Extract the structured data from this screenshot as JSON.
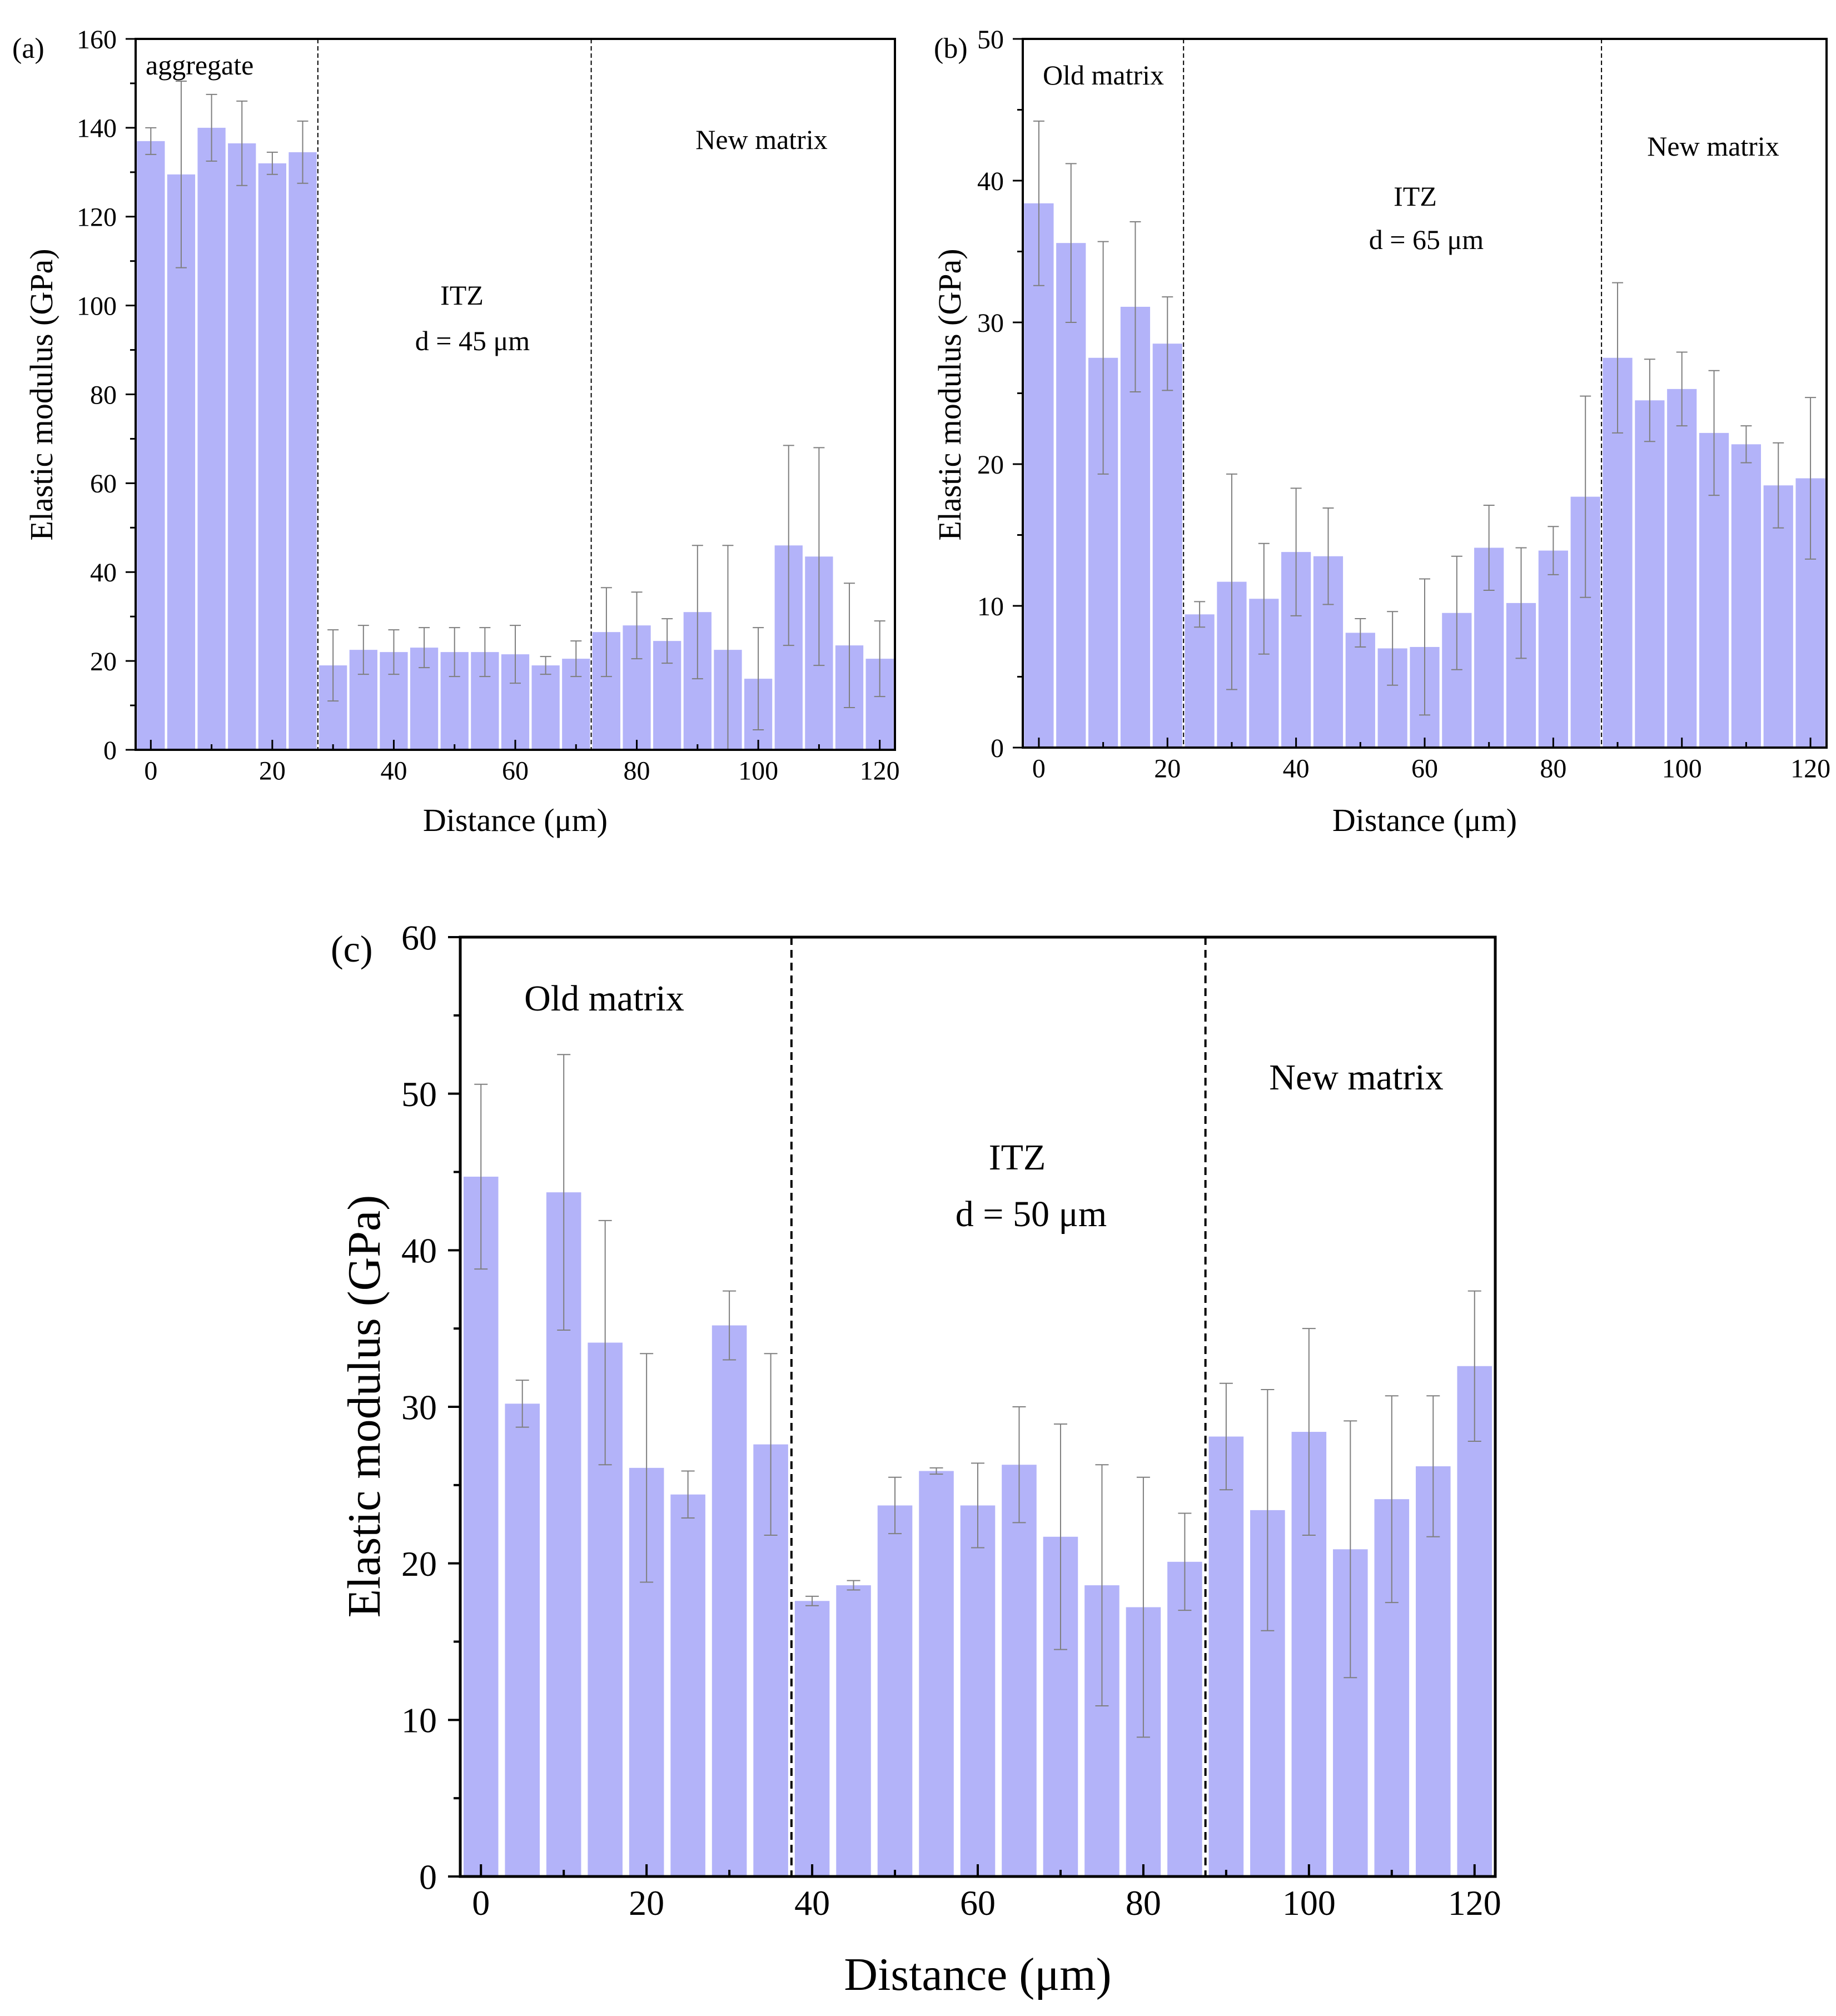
{
  "colors": {
    "bar": "#b3b3f9",
    "error_bar": "#7f7f7f",
    "axis": "#000000",
    "divider": "#000000"
  },
  "chart_data": [
    {
      "panel_label": "(a)",
      "type": "bar",
      "title": "",
      "xlabel": "Distance (μm)",
      "ylabel": "Elastic modulus (GPa)",
      "xlim": [
        -2.5,
        122.5
      ],
      "ylim": [
        0,
        160
      ],
      "xticks": [
        "0",
        "20",
        "40",
        "60",
        "80",
        "100",
        "120"
      ],
      "yticks": [
        "0",
        "20",
        "40",
        "60",
        "80",
        "100",
        "120",
        "140",
        "160"
      ],
      "x": [
        0,
        5,
        10,
        15,
        20,
        25,
        30,
        35,
        40,
        45,
        50,
        55,
        60,
        65,
        70,
        75,
        80,
        85,
        90,
        95,
        100,
        105,
        110,
        115,
        120
      ],
      "values": [
        137,
        129.5,
        140,
        136.5,
        132,
        134.5,
        19,
        22.5,
        22,
        23,
        22,
        22,
        21.5,
        19,
        20.5,
        26.5,
        28,
        24.5,
        31,
        22.5,
        16,
        46,
        43.5,
        23.5,
        20.5
      ],
      "errors": [
        3,
        21,
        7.5,
        9.5,
        2.5,
        7,
        8,
        5.5,
        5,
        4.5,
        5.5,
        5.5,
        6.5,
        2,
        4,
        10,
        7.5,
        5,
        15,
        23.5,
        11.5,
        22.5,
        24.5,
        14,
        8.5
      ],
      "dividers": [
        27.5,
        72.5
      ],
      "regions": [
        {
          "label": "aggregate",
          "lines": [
            "aggregate"
          ]
        },
        {
          "label": "ITZ d = 45 μm",
          "lines": [
            "ITZ",
            "d = 45 μm"
          ]
        },
        {
          "label": "New matrix",
          "lines": [
            "New matrix"
          ]
        }
      ]
    },
    {
      "panel_label": "(b)",
      "type": "bar",
      "title": "",
      "xlabel": "Distance (μm)",
      "ylabel": "Elastic modulus (GPa)",
      "xlim": [
        -2.5,
        122.5
      ],
      "ylim": [
        0,
        50
      ],
      "xticks": [
        "0",
        "20",
        "40",
        "60",
        "80",
        "100",
        "120"
      ],
      "yticks": [
        "0",
        "10",
        "20",
        "30",
        "40",
        "50"
      ],
      "x": [
        0,
        5,
        10,
        15,
        20,
        25,
        30,
        35,
        40,
        45,
        50,
        55,
        60,
        65,
        70,
        75,
        80,
        85,
        90,
        95,
        100,
        105,
        110,
        115,
        120
      ],
      "values": [
        38.4,
        35.6,
        27.5,
        31.1,
        28.5,
        9.4,
        11.7,
        10.5,
        13.8,
        13.5,
        8.1,
        7,
        7.1,
        9.5,
        14.1,
        10.2,
        13.9,
        17.7,
        27.5,
        24.5,
        25.3,
        22.2,
        21.4,
        18.5,
        19
      ],
      "errors": [
        5.8,
        5.6,
        8.2,
        6,
        3.3,
        0.9,
        7.6,
        3.9,
        4.5,
        3.4,
        1,
        2.6,
        4.8,
        4,
        3,
        3.9,
        1.7,
        7.1,
        5.3,
        2.9,
        2.6,
        4.4,
        1.3,
        3,
        5.7
      ],
      "dividers": [
        22.5,
        87.5
      ],
      "regions": [
        {
          "label": "Old matrix",
          "lines": [
            "Old matrix"
          ]
        },
        {
          "label": "ITZ d = 65 μm",
          "lines": [
            "ITZ",
            "d = 65 μm"
          ]
        },
        {
          "label": "New matrix",
          "lines": [
            "New matrix"
          ]
        }
      ]
    },
    {
      "panel_label": "(c)",
      "type": "bar",
      "title": "",
      "xlabel": "Distance (μm)",
      "ylabel": "Elastic modulus (GPa)",
      "xlim": [
        -2.5,
        122.5
      ],
      "ylim": [
        0,
        60
      ],
      "xticks": [
        "0",
        "20",
        "40",
        "60",
        "80",
        "100",
        "120"
      ],
      "yticks": [
        "0",
        "10",
        "20",
        "30",
        "40",
        "50",
        "60"
      ],
      "x": [
        0,
        5,
        10,
        15,
        20,
        25,
        30,
        35,
        40,
        45,
        50,
        55,
        60,
        65,
        70,
        75,
        80,
        85,
        90,
        95,
        100,
        105,
        110,
        115,
        120
      ],
      "values": [
        44.7,
        30.2,
        43.7,
        34.1,
        26.1,
        24.4,
        35.2,
        27.6,
        17.6,
        18.6,
        23.7,
        25.9,
        23.7,
        26.3,
        21.7,
        18.6,
        17.2,
        20.1,
        28.1,
        23.4,
        28.4,
        20.9,
        24.1,
        26.2,
        32.6
      ],
      "errors": [
        5.9,
        1.5,
        8.8,
        7.8,
        7.3,
        1.5,
        2.2,
        5.8,
        0.3,
        0.3,
        1.8,
        0.2,
        2.7,
        3.7,
        7.2,
        7.7,
        8.3,
        3.1,
        3.4,
        7.7,
        6.6,
        8.2,
        6.6,
        4.5,
        4.8
      ],
      "dividers": [
        37.5,
        87.5
      ],
      "regions": [
        {
          "label": "Old matrix",
          "lines": [
            "Old matrix"
          ]
        },
        {
          "label": "ITZ d = 50 μm",
          "lines": [
            "ITZ",
            "d = 50 μm"
          ]
        },
        {
          "label": "New matrix",
          "lines": [
            "New matrix"
          ]
        }
      ]
    }
  ]
}
